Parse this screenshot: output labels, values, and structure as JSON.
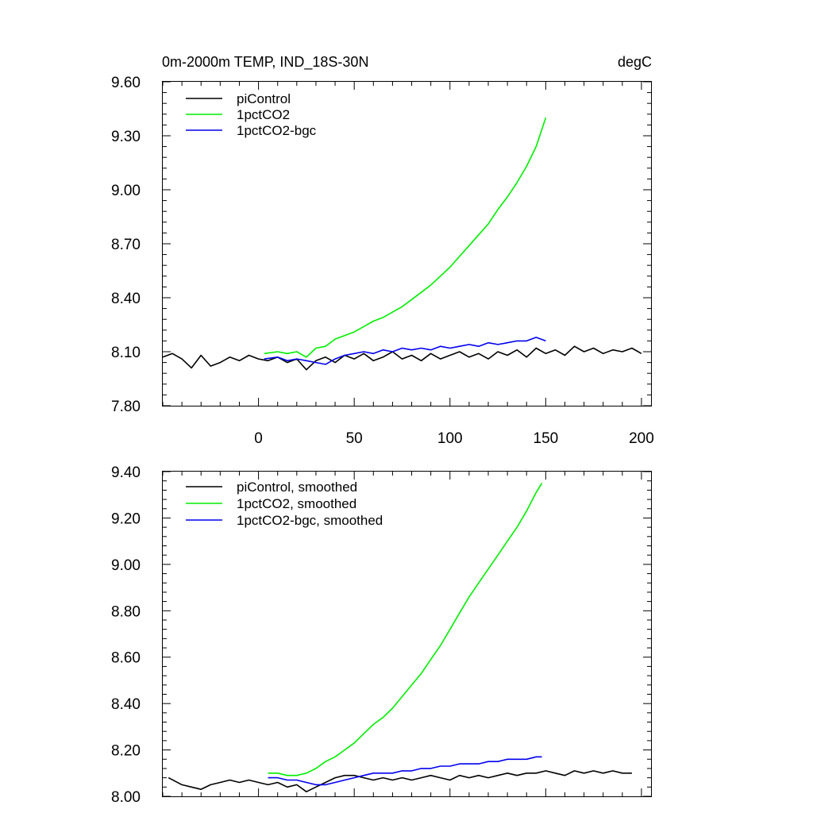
{
  "chart_data": [
    {
      "type": "line",
      "title_left": "0m-2000m TEMP, IND_18S-30N",
      "title_right": "degC",
      "xlabel": "",
      "ylabel": "",
      "xlim": [
        -50,
        205
      ],
      "ylim": [
        7.8,
        9.6
      ],
      "xticks": [
        0,
        50,
        100,
        150,
        200
      ],
      "yticks": [
        7.8,
        8.1,
        8.4,
        8.7,
        9.0,
        9.3,
        9.6
      ],
      "ytick_labels": [
        "7.80",
        "8.10",
        "8.40",
        "8.70",
        "9.00",
        "9.30",
        "9.60"
      ],
      "xtick_labels": [
        "0",
        "50",
        "100",
        "150",
        "200"
      ],
      "legend_position": "top-left",
      "series": [
        {
          "name": "piControl",
          "color": "#000000",
          "x": [
            -50,
            -45,
            -40,
            -35,
            -30,
            -25,
            -20,
            -15,
            -10,
            -5,
            0,
            5,
            10,
            15,
            20,
            25,
            30,
            35,
            40,
            45,
            50,
            55,
            60,
            65,
            70,
            75,
            80,
            85,
            90,
            95,
            100,
            105,
            110,
            115,
            120,
            125,
            130,
            135,
            140,
            145,
            150,
            155,
            160,
            165,
            170,
            175,
            180,
            185,
            190,
            195,
            200
          ],
          "values": [
            8.07,
            8.09,
            8.06,
            8.01,
            8.08,
            8.02,
            8.04,
            8.07,
            8.05,
            8.08,
            8.06,
            8.05,
            8.07,
            8.04,
            8.06,
            8.0,
            8.05,
            8.07,
            8.04,
            8.08,
            8.06,
            8.09,
            8.05,
            8.07,
            8.1,
            8.06,
            8.08,
            8.05,
            8.09,
            8.06,
            8.08,
            8.1,
            8.07,
            8.09,
            8.06,
            8.1,
            8.08,
            8.11,
            8.07,
            8.12,
            8.09,
            8.11,
            8.08,
            8.13,
            8.1,
            8.12,
            8.09,
            8.11,
            8.1,
            8.12,
            8.09
          ]
        },
        {
          "name": "1pctCO2",
          "color": "#00ee00",
          "x": [
            3,
            10,
            15,
            20,
            25,
            30,
            35,
            40,
            45,
            50,
            55,
            60,
            65,
            70,
            75,
            80,
            85,
            90,
            95,
            100,
            105,
            110,
            115,
            120,
            125,
            130,
            135,
            140,
            145,
            150
          ],
          "values": [
            8.09,
            8.1,
            8.09,
            8.1,
            8.07,
            8.12,
            8.13,
            8.17,
            8.19,
            8.21,
            8.24,
            8.27,
            8.29,
            8.32,
            8.35,
            8.39,
            8.43,
            8.47,
            8.52,
            8.57,
            8.63,
            8.69,
            8.75,
            8.81,
            8.89,
            8.96,
            9.04,
            9.13,
            9.24,
            9.4
          ]
        },
        {
          "name": "1pctCO2-bgc",
          "color": "#0000ee",
          "x": [
            3,
            10,
            15,
            20,
            25,
            30,
            35,
            40,
            45,
            50,
            55,
            60,
            65,
            70,
            75,
            80,
            85,
            90,
            95,
            100,
            105,
            110,
            115,
            120,
            125,
            130,
            135,
            140,
            145,
            150
          ],
          "values": [
            8.06,
            8.07,
            8.05,
            8.06,
            8.05,
            8.04,
            8.03,
            8.06,
            8.08,
            8.09,
            8.1,
            8.09,
            8.11,
            8.1,
            8.12,
            8.11,
            8.12,
            8.11,
            8.13,
            8.12,
            8.13,
            8.14,
            8.13,
            8.15,
            8.14,
            8.15,
            8.16,
            8.16,
            8.18,
            8.16
          ]
        }
      ]
    },
    {
      "type": "line",
      "xlim": [
        -50,
        205
      ],
      "ylim": [
        8.0,
        9.4
      ],
      "xticks": [
        0,
        50,
        100,
        150,
        200
      ],
      "yticks": [
        8.0,
        8.2,
        8.4,
        8.6,
        8.8,
        9.0,
        9.2,
        9.4
      ],
      "ytick_labels": [
        "8.00",
        "8.20",
        "8.40",
        "8.60",
        "8.80",
        "9.00",
        "9.20",
        "9.40"
      ],
      "legend_position": "top-left",
      "series": [
        {
          "name": "piControl, smoothed",
          "color": "#000000",
          "x": [
            -47,
            -40,
            -35,
            -30,
            -25,
            -20,
            -15,
            -10,
            -5,
            0,
            5,
            10,
            15,
            20,
            25,
            30,
            35,
            40,
            45,
            50,
            55,
            60,
            65,
            70,
            75,
            80,
            85,
            90,
            95,
            100,
            105,
            110,
            115,
            120,
            125,
            130,
            135,
            140,
            145,
            150,
            155,
            160,
            165,
            170,
            175,
            180,
            185,
            190,
            195
          ],
          "values": [
            8.08,
            8.05,
            8.04,
            8.03,
            8.05,
            8.06,
            8.07,
            8.06,
            8.07,
            8.06,
            8.05,
            8.06,
            8.04,
            8.05,
            8.02,
            8.04,
            8.06,
            8.08,
            8.09,
            8.09,
            8.08,
            8.07,
            8.08,
            8.07,
            8.08,
            8.07,
            8.08,
            8.09,
            8.08,
            8.07,
            8.09,
            8.08,
            8.09,
            8.08,
            8.09,
            8.1,
            8.09,
            8.1,
            8.1,
            8.11,
            8.1,
            8.09,
            8.11,
            8.1,
            8.11,
            8.1,
            8.11,
            8.1,
            8.1
          ]
        },
        {
          "name": "1pctCO2, smoothed",
          "color": "#00ee00",
          "x": [
            5,
            10,
            15,
            20,
            25,
            30,
            35,
            40,
            45,
            50,
            55,
            60,
            65,
            70,
            75,
            80,
            85,
            90,
            95,
            100,
            105,
            110,
            115,
            120,
            125,
            130,
            135,
            140,
            145,
            148
          ],
          "values": [
            8.1,
            8.1,
            8.09,
            8.09,
            8.1,
            8.12,
            8.15,
            8.17,
            8.2,
            8.23,
            8.27,
            8.31,
            8.34,
            8.38,
            8.43,
            8.48,
            8.53,
            8.59,
            8.65,
            8.72,
            8.79,
            8.86,
            8.92,
            8.98,
            9.04,
            9.1,
            9.16,
            9.23,
            9.31,
            9.35
          ]
        },
        {
          "name": "1pctCO2-bgc, smoothed",
          "color": "#0000ee",
          "x": [
            5,
            10,
            15,
            20,
            25,
            30,
            35,
            40,
            45,
            50,
            55,
            60,
            65,
            70,
            75,
            80,
            85,
            90,
            95,
            100,
            105,
            110,
            115,
            120,
            125,
            130,
            135,
            140,
            145,
            148
          ],
          "values": [
            8.08,
            8.08,
            8.07,
            8.07,
            8.06,
            8.05,
            8.05,
            8.06,
            8.07,
            8.08,
            8.09,
            8.1,
            8.1,
            8.1,
            8.11,
            8.11,
            8.12,
            8.12,
            8.13,
            8.13,
            8.14,
            8.14,
            8.14,
            8.15,
            8.15,
            8.16,
            8.16,
            8.16,
            8.17,
            8.17
          ]
        }
      ]
    }
  ]
}
